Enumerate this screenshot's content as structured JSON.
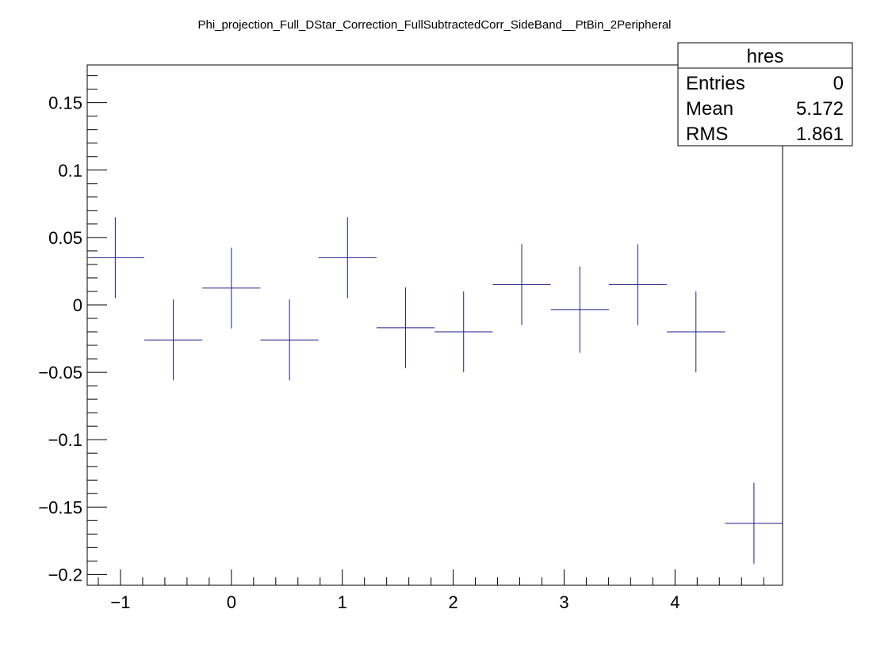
{
  "chart_data": {
    "type": "scatter",
    "title": "Phi_projection_Full_DStar_Correction_FullSubtractedCorr_SideBand__PtBin_2Peripheral",
    "xlabel": "",
    "ylabel": "",
    "xlim": [
      -1.3,
      4.97
    ],
    "ylim": [
      -0.208,
      0.178
    ],
    "x_ticks": [
      -1,
      0,
      1,
      2,
      3,
      4
    ],
    "x_tick_labels": [
      "−1",
      "0",
      "1",
      "2",
      "3",
      "4"
    ],
    "y_ticks": [
      -0.2,
      -0.15,
      -0.1,
      -0.05,
      0,
      0.05,
      0.1,
      0.15
    ],
    "y_tick_labels": [
      "−0.2",
      "−0.15",
      "−0.1",
      "−0.05",
      "0",
      "0.05",
      "0.1",
      "0.15"
    ],
    "grid": false,
    "series_color": "#1b1f8a",
    "points": [
      {
        "x": -1.047,
        "y": 0.035,
        "xerr": 0.262,
        "yerr": 0.03
      },
      {
        "x": -0.524,
        "y": -0.026,
        "xerr": 0.262,
        "yerr": 0.03
      },
      {
        "x": 0.0,
        "y": 0.0125,
        "xerr": 0.262,
        "yerr": 0.03
      },
      {
        "x": 0.524,
        "y": -0.026,
        "xerr": 0.262,
        "yerr": 0.03
      },
      {
        "x": 1.047,
        "y": 0.035,
        "xerr": 0.262,
        "yerr": 0.03
      },
      {
        "x": 1.571,
        "y": -0.017,
        "xerr": 0.262,
        "yerr": 0.03
      },
      {
        "x": 2.094,
        "y": -0.02,
        "xerr": 0.262,
        "yerr": 0.03
      },
      {
        "x": 2.618,
        "y": 0.015,
        "xerr": 0.262,
        "yerr": 0.03
      },
      {
        "x": 3.142,
        "y": -0.0035,
        "xerr": 0.262,
        "yerr": 0.032
      },
      {
        "x": 3.665,
        "y": 0.015,
        "xerr": 0.262,
        "yerr": 0.03
      },
      {
        "x": 4.189,
        "y": -0.02,
        "xerr": 0.262,
        "yerr": 0.03
      },
      {
        "x": 4.712,
        "y": -0.162,
        "xerr": 0.262,
        "yerr": 0.03
      }
    ],
    "stats_box": {
      "name": "hres",
      "rows": [
        {
          "label": "Entries",
          "value": "0"
        },
        {
          "label": "Mean",
          "value": "5.172"
        },
        {
          "label": "RMS",
          "value": "1.861"
        }
      ]
    }
  }
}
